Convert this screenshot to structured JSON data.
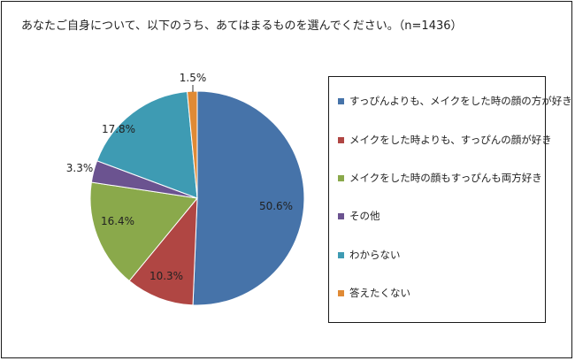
{
  "chart_data": {
    "type": "pie",
    "title": "あなたご自身について、以下のうち、あてはまるものを選んでください。（n=1436）",
    "slices": [
      {
        "label": "すっぴんよりも、メイクをした時の顔の方が好き",
        "value": 50.6,
        "display": "50.6%",
        "color": "#4673A9"
      },
      {
        "label": "メイクをした時よりも、すっぴんの顔が好き",
        "value": 10.3,
        "display": "10.3%",
        "color": "#B04643"
      },
      {
        "label": "メイクをした時の顔もすっぴんも両方好き",
        "value": 16.4,
        "display": "16.4%",
        "color": "#8AA94B"
      },
      {
        "label": "その他",
        "value": 3.3,
        "display": "3.3%",
        "color": "#6B5390"
      },
      {
        "label": "わからない",
        "value": 17.8,
        "display": "17.8%",
        "color": "#3E9BB3"
      },
      {
        "label": "答えたくない",
        "value": 1.5,
        "display": "1.5%",
        "color": "#E08A35"
      }
    ],
    "start": "12 o'clock",
    "direction": "clockwise",
    "legend_position": "right"
  }
}
